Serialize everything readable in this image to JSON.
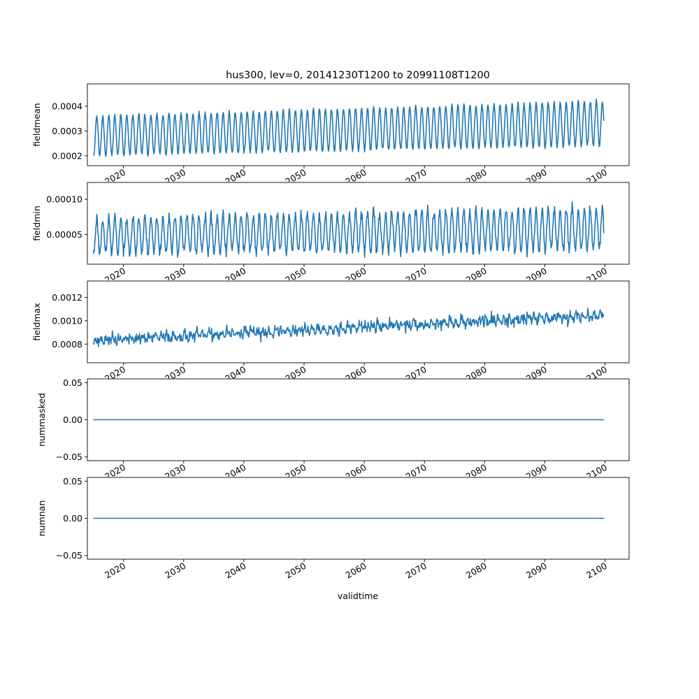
{
  "figure": {
    "title": "hus300, lev=0, 20141230T1200 to 20991108T1200",
    "xlabel": "validtime",
    "line_color": "#1f77b4"
  },
  "chart_data": [
    {
      "type": "line",
      "ylabel": "fieldmean",
      "xlim": [
        2014.0,
        2104.0
      ],
      "ylim": [
        0.00016,
        0.00049
      ],
      "yticks": [
        0.0002,
        0.0003,
        0.0004
      ],
      "yticklabels": [
        "0.0002",
        "0.0003",
        "0.0004"
      ],
      "xticks": [
        2020,
        2030,
        2040,
        2050,
        2060,
        2070,
        2080,
        2090,
        2100
      ],
      "xticklabels": [
        "2020",
        "2030",
        "2040",
        "2050",
        "2060",
        "2070",
        "2080",
        "2090",
        "2100"
      ],
      "model": {
        "start": 2014.99,
        "end": 2099.85,
        "step": 0.0833,
        "base0": 0.00028,
        "base1": 0.00033,
        "amp0": 8e-05,
        "amp1": 9e-05,
        "noise": 1.2e-05,
        "cycle": "seasonal",
        "seed": 11
      }
    },
    {
      "type": "line",
      "ylabel": "fieldmin",
      "xlim": [
        2014.0,
        2104.0
      ],
      "ylim": [
        7.5e-06,
        0.000124
      ],
      "yticks": [
        5e-05,
        0.0001
      ],
      "yticklabels": [
        "0.00005",
        "0.00010"
      ],
      "xticks": [
        2020,
        2030,
        2040,
        2050,
        2060,
        2070,
        2080,
        2090,
        2100
      ],
      "xticklabels": [
        "2020",
        "2030",
        "2040",
        "2050",
        "2060",
        "2070",
        "2080",
        "2090",
        "2100"
      ],
      "model": {
        "start": 2014.99,
        "end": 2099.85,
        "step": 0.0833,
        "base0": 4.8e-05,
        "base1": 5.8e-05,
        "amp0": 2.5e-05,
        "amp1": 3e-05,
        "noise": 1.2e-05,
        "cycle": "seasonal",
        "seed": 23
      }
    },
    {
      "type": "line",
      "ylabel": "fieldmax",
      "xlim": [
        2014.0,
        2104.0
      ],
      "ylim": [
        0.00064,
        0.00134
      ],
      "yticks": [
        0.0008,
        0.001,
        0.0012
      ],
      "yticklabels": [
        "0.0008",
        "0.0010",
        "0.0012"
      ],
      "xticks": [
        2020,
        2030,
        2040,
        2050,
        2060,
        2070,
        2080,
        2090,
        2100
      ],
      "xticklabels": [
        "2020",
        "2030",
        "2040",
        "2050",
        "2060",
        "2070",
        "2080",
        "2090",
        "2100"
      ],
      "model": {
        "start": 2014.99,
        "end": 2099.85,
        "step": 0.0833,
        "base0": 0.00083,
        "base1": 0.00105,
        "amp0": 3e-05,
        "amp1": 4e-05,
        "noise": 6.5e-05,
        "cycle": "noisy",
        "seed": 37
      }
    },
    {
      "type": "line",
      "ylabel": "nummasked",
      "xlim": [
        2014.0,
        2104.0
      ],
      "ylim": [
        -0.055,
        0.055
      ],
      "yticks": [
        -0.05,
        0.0,
        0.05
      ],
      "yticklabels": [
        "−0.05",
        "0.00",
        "0.05"
      ],
      "xticks": [
        2020,
        2030,
        2040,
        2050,
        2060,
        2070,
        2080,
        2090,
        2100
      ],
      "xticklabels": [
        "2020",
        "2030",
        "2040",
        "2050",
        "2060",
        "2070",
        "2080",
        "2090",
        "2100"
      ],
      "x": [
        2014.99,
        2099.85
      ],
      "y": [
        0.0,
        0.0
      ]
    },
    {
      "type": "line",
      "ylabel": "numnan",
      "xlim": [
        2014.0,
        2104.0
      ],
      "ylim": [
        -0.055,
        0.055
      ],
      "yticks": [
        -0.05,
        0.0,
        0.05
      ],
      "yticklabels": [
        "−0.05",
        "0.00",
        "0.05"
      ],
      "xticks": [
        2020,
        2030,
        2040,
        2050,
        2060,
        2070,
        2080,
        2090,
        2100
      ],
      "xticklabels": [
        "2020",
        "2030",
        "2040",
        "2050",
        "2060",
        "2070",
        "2080",
        "2090",
        "2100"
      ],
      "x": [
        2014.99,
        2099.85
      ],
      "y": [
        0.0,
        0.0
      ]
    }
  ]
}
